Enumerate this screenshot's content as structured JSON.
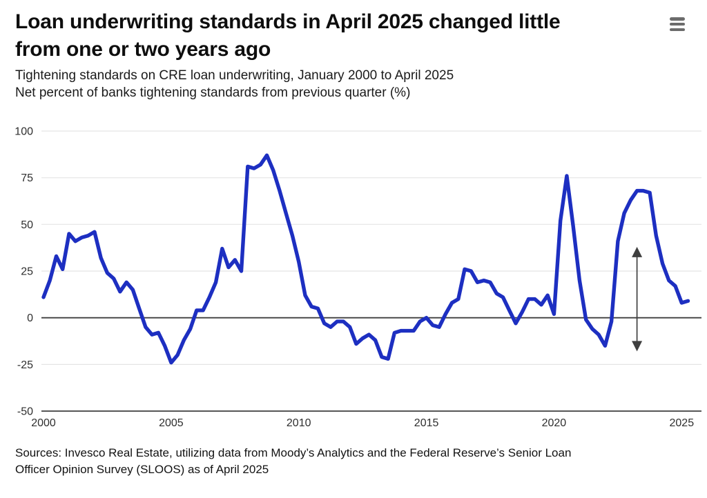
{
  "header": {
    "title_line1": "Loan underwriting standards in April 2025 changed little",
    "title_line2": "from one or two years ago",
    "subtitle_line1": "Tightening standards on CRE loan underwriting, January 2000 to April 2025",
    "subtitle_line2": "Net percent of banks tightening standards from previous quarter (%)",
    "menu_icon": "hamburger-menu-icon"
  },
  "footer": {
    "source_line1": "Sources: Invesco Real Estate, utilizing data from Moody’s Analytics and the Federal Reserve’s Senior Loan",
    "source_line2": "Officer Opinion Survey (SLOOS) as of April 2025"
  },
  "colors": {
    "line": "#1d2fc1",
    "grid_light": "#e4e4e4",
    "grid_dark": "#3d3d3d",
    "axis_text": "#2e2e2e",
    "arrow": "#3f3f3f",
    "background": "#ffffff"
  },
  "chart_data": {
    "type": "line",
    "title": "Tightening standards on CRE loan underwriting, January 2000 to April 2025",
    "ylabel": "Net percent of banks tightening standards from previous quarter (%)",
    "xlabel": "",
    "frequency": "quarterly",
    "x_start": "2000-Q1",
    "x_end": "2025-Q2",
    "ylim": [
      -50,
      100
    ],
    "y_ticks": [
      100,
      75,
      50,
      25,
      0,
      -25,
      -50
    ],
    "x_ticks": [
      2000,
      2005,
      2010,
      2015,
      2020,
      2025
    ],
    "grid": "horizontal-only",
    "legend": "none",
    "series": [
      {
        "name": "Net percent of banks tightening CRE standards",
        "values": [
          11,
          20,
          33,
          26,
          45,
          41,
          43,
          44,
          46,
          32,
          24,
          21,
          14,
          19,
          15,
          5,
          -5,
          -9,
          -8,
          -15,
          -24,
          -20,
          -12,
          -6,
          4,
          4,
          11,
          19,
          37,
          27,
          31,
          25,
          81,
          80,
          82,
          87,
          79,
          68,
          56,
          44,
          30,
          12,
          6,
          5,
          -3,
          -5,
          -2,
          -2,
          -5,
          -14,
          -11,
          -9,
          -12,
          -21,
          -22,
          -8,
          -7,
          -7,
          -7,
          -2,
          0,
          -4,
          -5,
          2,
          8,
          10,
          26,
          25,
          19,
          20,
          19,
          13,
          11,
          4,
          -3,
          3,
          10,
          10,
          7,
          12,
          2,
          52,
          76,
          49,
          20,
          -1,
          -6,
          -9,
          -15,
          -2,
          41,
          56,
          63,
          68,
          68,
          67,
          44,
          29,
          20,
          17,
          8,
          9
        ]
      }
    ],
    "annotations": [
      {
        "type": "double-headed-vertical-arrow",
        "x_year": 2023.25,
        "value_top": 38,
        "value_bottom": -18
      }
    ]
  }
}
